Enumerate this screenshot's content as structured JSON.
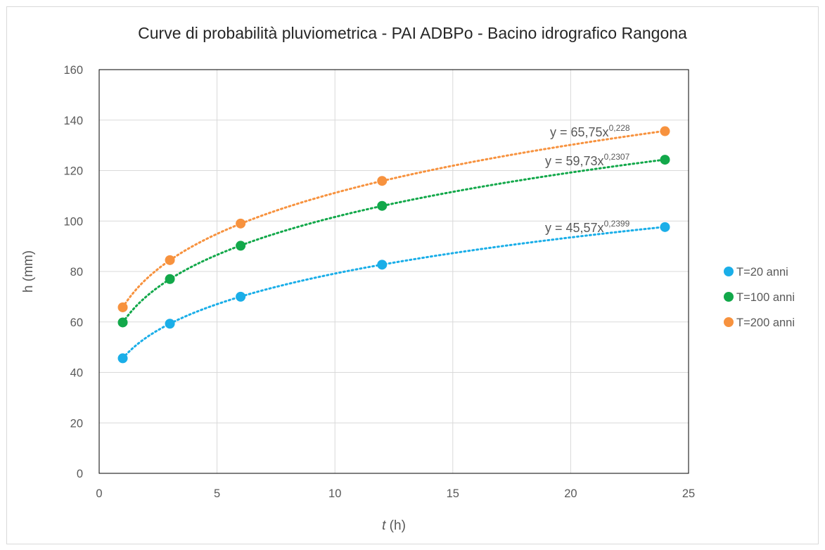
{
  "chart_data": {
    "type": "scatter",
    "title": "Curve di probabilità pluviometrica - PAI ADBPo - Bacino idrografico Rangona",
    "xlabel_italic": "t",
    "xlabel_rest": " (h)",
    "ylabel": "h (mm)",
    "xlim": [
      0,
      25
    ],
    "ylim": [
      0,
      160
    ],
    "x_ticks": [
      0,
      5,
      10,
      15,
      20,
      25
    ],
    "y_ticks": [
      0,
      20,
      40,
      60,
      80,
      100,
      120,
      140,
      160
    ],
    "grid": true,
    "legend_position": "right",
    "trendline": "power, dotted",
    "series": [
      {
        "name": "T=20 anni",
        "color": "#1aaee8",
        "x": [
          1,
          3,
          6,
          12,
          24
        ],
        "y": [
          45.6,
          59.3,
          70.0,
          82.7,
          97.6
        ],
        "trend": {
          "a": 45.57,
          "b": 0.2399
        },
        "equation": {
          "base": "y = 45,57x",
          "exp": "0,2399"
        }
      },
      {
        "name": "T=100 anni",
        "color": "#12a84a",
        "x": [
          1,
          3,
          6,
          12,
          24
        ],
        "y": [
          59.8,
          77.0,
          90.2,
          106.0,
          124.3
        ],
        "trend": {
          "a": 59.73,
          "b": 0.2307
        },
        "equation": {
          "base": "y = 59,73x",
          "exp": "0,2307"
        }
      },
      {
        "name": "T=200 anni",
        "color": "#f7923e",
        "x": [
          1,
          3,
          6,
          12,
          24
        ],
        "y": [
          65.8,
          84.5,
          99.0,
          115.9,
          135.6
        ],
        "trend": {
          "a": 65.75,
          "b": 0.228
        },
        "equation": {
          "base": "y = 65,75x",
          "exp": "0,228"
        }
      }
    ]
  }
}
